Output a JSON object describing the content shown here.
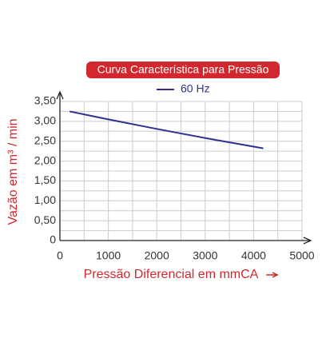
{
  "chart_data": {
    "type": "line",
    "title": "Curva Característica para Pressão",
    "x_label": "Pressão Diferencial em mmCA",
    "y_label": "Vazão em m³ / min",
    "x": [
      200,
      1000,
      2000,
      3000,
      4200
    ],
    "series": [
      {
        "name": "60 Hz",
        "color": "#2e3192",
        "values": [
          3.25,
          3.05,
          2.81,
          2.58,
          2.32
        ]
      }
    ],
    "xlim": [
      0,
      5000
    ],
    "ylim": [
      0,
      3.5
    ],
    "xticks": [
      0,
      1000,
      2000,
      3000,
      4000,
      5000
    ],
    "yticks": [
      0,
      {
        "value": 0.5,
        "label": "0,50"
      },
      {
        "value": 1,
        "label": "1,00"
      },
      {
        "value": 1.5,
        "label": "1,50"
      },
      {
        "value": 2,
        "label": "2,00"
      },
      {
        "value": 2.5,
        "label": "2,50"
      },
      {
        "value": 3,
        "label": "3,00"
      },
      {
        "value": 3.5,
        "label": "3,50"
      }
    ],
    "xminorticks": [
      500,
      1500,
      2500,
      3500,
      4500
    ],
    "yminorticks": [
      0.25,
      0.75,
      1.25,
      1.75,
      2.25,
      2.75,
      3.25
    ],
    "grid": true
  }
}
